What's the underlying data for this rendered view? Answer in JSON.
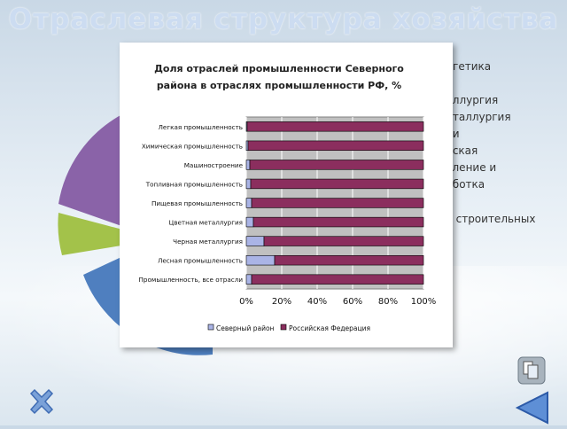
{
  "slide": {
    "title": "Отраслевая структура хозяйства",
    "background_list": [
      "...ргетика",
      "...аллургия",
      "...еталлургия",
      "...ки",
      "...еская",
      "...вление и",
      "...аботка",
      "...о строительных"
    ]
  },
  "chart_data": {
    "type": "bar",
    "orientation": "horizontal",
    "stacked": "percent",
    "title_lines": [
      "Доля отраслей промышленности Северного",
      "района в отраслях промышленности РФ, %"
    ],
    "categories": [
      "Легкая промышленность",
      "Химическая промышленность",
      "Машиностроение",
      "Топливная промышленность",
      "Пищевая промышленность",
      "Цветная металлургия",
      "Черная металлургия",
      "Лесная промышленность",
      "Промышленность, все отрасли"
    ],
    "series": [
      {
        "name": "Северный район",
        "color": "#aab4e6",
        "values": [
          0.5,
          1,
          2,
          2.5,
          3,
          4,
          10,
          16,
          3
        ]
      },
      {
        "name": "Российская Федерация",
        "color": "#8b2e5e",
        "values": [
          99.5,
          99,
          98,
          97.5,
          97,
          96,
          90,
          84,
          97
        ]
      }
    ],
    "xticks": [
      "0%",
      "20%",
      "40%",
      "60%",
      "80%",
      "100%"
    ],
    "xlim": [
      0,
      100
    ],
    "plot_background": "#c0c0c0",
    "legend_position": "bottom"
  }
}
